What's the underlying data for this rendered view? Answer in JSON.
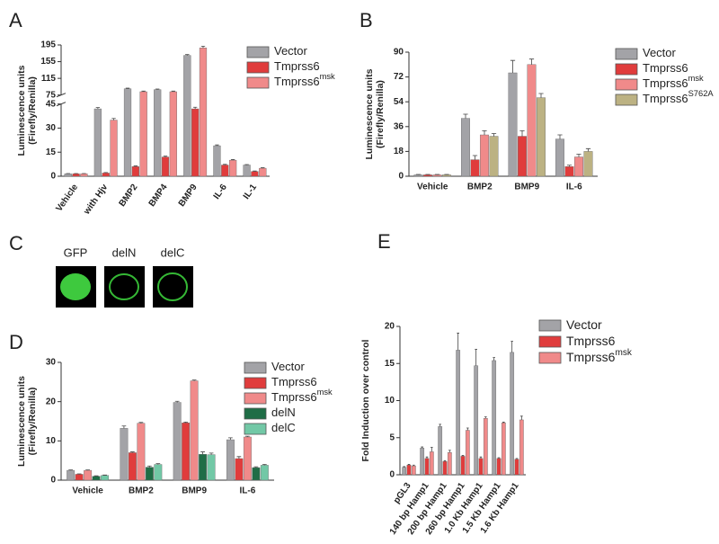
{
  "chart_data": [
    {
      "type": "bar",
      "panel_label": "A",
      "ylabel": [
        "Luminescence units",
        "(Firefly/Renilla)"
      ],
      "categories": [
        "Vehicle",
        "with Hjv",
        "BMP2",
        "BMP4",
        "BMP9",
        "IL-6",
        "IL-1"
      ],
      "series": [
        {
          "name": "Vector",
          "color": "#a3a3a7",
          "values": [
            1.5,
            42,
            90,
            88,
            170,
            19,
            7
          ],
          "errors": [
            0.2,
            0.8,
            1.5,
            1.5,
            2,
            0.5,
            0.3
          ]
        },
        {
          "name": "Tmprss6",
          "color": "#e03c3c",
          "values": [
            1.5,
            2,
            6,
            12,
            42,
            7,
            3
          ],
          "errors": [
            0.2,
            0.3,
            0.4,
            0.5,
            1,
            0.4,
            0.3
          ]
        },
        {
          "name": "Tmprss6",
          "sup": "msk",
          "color": "#f08a8a",
          "values": [
            1.5,
            35,
            83,
            83,
            188,
            10,
            5
          ],
          "errors": [
            0.2,
            1,
            1.5,
            1.5,
            4,
            0.4,
            0.3
          ]
        }
      ],
      "ylim": [
        0,
        195
      ],
      "yticks": [
        0,
        15,
        30,
        45,
        75,
        115,
        155,
        195
      ],
      "axis_break": [
        45,
        75
      ]
    },
    {
      "type": "bar",
      "panel_label": "B",
      "ylabel": [
        "Luminescence units",
        "(Firefly/Renilla)"
      ],
      "categories": [
        "Vehicle",
        "BMP2",
        "BMP9",
        "IL-6"
      ],
      "series": [
        {
          "name": "Vector",
          "color": "#a3a3a7",
          "values": [
            1,
            42,
            75,
            27
          ],
          "errors": [
            0.3,
            3,
            9,
            3
          ]
        },
        {
          "name": "Tmprss6",
          "color": "#e03c3c",
          "values": [
            1,
            12,
            29,
            7
          ],
          "errors": [
            0.3,
            3,
            4,
            1
          ]
        },
        {
          "name": "Tmprss6",
          "sup": "msk",
          "color": "#f08a8a",
          "values": [
            1,
            30,
            81,
            14
          ],
          "errors": [
            0.3,
            3,
            4,
            2
          ]
        },
        {
          "name": "Tmprss6",
          "sup": "S762A",
          "color": "#bcb283",
          "values": [
            1,
            29,
            57,
            18
          ],
          "errors": [
            0.3,
            2,
            3,
            2
          ]
        }
      ],
      "ylim": [
        0,
        90
      ],
      "yticks": [
        0,
        18,
        36,
        54,
        72,
        90
      ]
    },
    {
      "type": "bar",
      "panel_label": "D",
      "ylabel": [
        "Luminescence units",
        "(Firefly/Renilla)"
      ],
      "categories": [
        "Vehicle",
        "BMP2",
        "BMP9",
        "IL-6"
      ],
      "series": [
        {
          "name": "Vector",
          "color": "#a3a3a7",
          "values": [
            2.5,
            13.2,
            19.8,
            10.3
          ],
          "errors": [
            0.1,
            0.6,
            0.3,
            0.5
          ]
        },
        {
          "name": "Tmprss6",
          "color": "#e03c3c",
          "values": [
            1.5,
            7,
            14.6,
            5.5
          ],
          "errors": [
            0.1,
            0.2,
            0.2,
            0.5
          ]
        },
        {
          "name": "Tmprss6",
          "sup": "msk",
          "color": "#f08a8a",
          "values": [
            2.5,
            14.5,
            25.3,
            11
          ],
          "errors": [
            0.1,
            0.2,
            0.2,
            0.2
          ]
        },
        {
          "name": "delN",
          "color": "#1f6d46",
          "values": [
            1,
            3.3,
            6.6,
            3.2
          ],
          "errors": [
            0.1,
            0.3,
            0.6,
            0.2
          ]
        },
        {
          "name": "delC",
          "color": "#72c8a6",
          "values": [
            1.2,
            4,
            6.5,
            3.8
          ],
          "errors": [
            0.1,
            0.2,
            0.4,
            0.2
          ]
        }
      ],
      "ylim": [
        0,
        30
      ],
      "yticks": [
        0,
        10,
        20,
        30
      ]
    },
    {
      "type": "bar",
      "panel_label": "E",
      "ylabel": [
        "Fold Induction over control"
      ],
      "categories": [
        "pGL3",
        "140 bp Hamp1",
        "200 bp Hamp1",
        "260 bp Hamp1",
        "1.0 Kb Hamp1",
        "1.5 Kb Hamp1",
        "1.6 Kb Hamp1"
      ],
      "series": [
        {
          "name": "Vector",
          "color": "#a3a3a7",
          "values": [
            1,
            3.6,
            6.5,
            16.8,
            14.7,
            15.4,
            16.5
          ],
          "errors": [
            0.1,
            0.15,
            0.3,
            2.3,
            2.2,
            0.4,
            1.5
          ]
        },
        {
          "name": "Tmprss6",
          "color": "#e03c3c",
          "values": [
            1.3,
            2.2,
            1.8,
            2.5,
            2.2,
            2.2,
            2.1
          ],
          "errors": [
            0.1,
            0.2,
            0.1,
            0.1,
            0.2,
            0.1,
            0.1
          ]
        },
        {
          "name": "Tmprss6",
          "sup": "msk",
          "color": "#f08a8a",
          "values": [
            1.2,
            3.1,
            3.0,
            6.0,
            7.6,
            7.0,
            7.4
          ],
          "errors": [
            0.1,
            0.6,
            0.3,
            0.3,
            0.2,
            0.1,
            0.5
          ]
        }
      ],
      "ylim": [
        0,
        20
      ],
      "yticks": [
        0,
        5,
        10,
        15,
        20
      ]
    }
  ],
  "panel_c": {
    "label": "C",
    "images": [
      "GFP",
      "delN",
      "delC"
    ]
  }
}
